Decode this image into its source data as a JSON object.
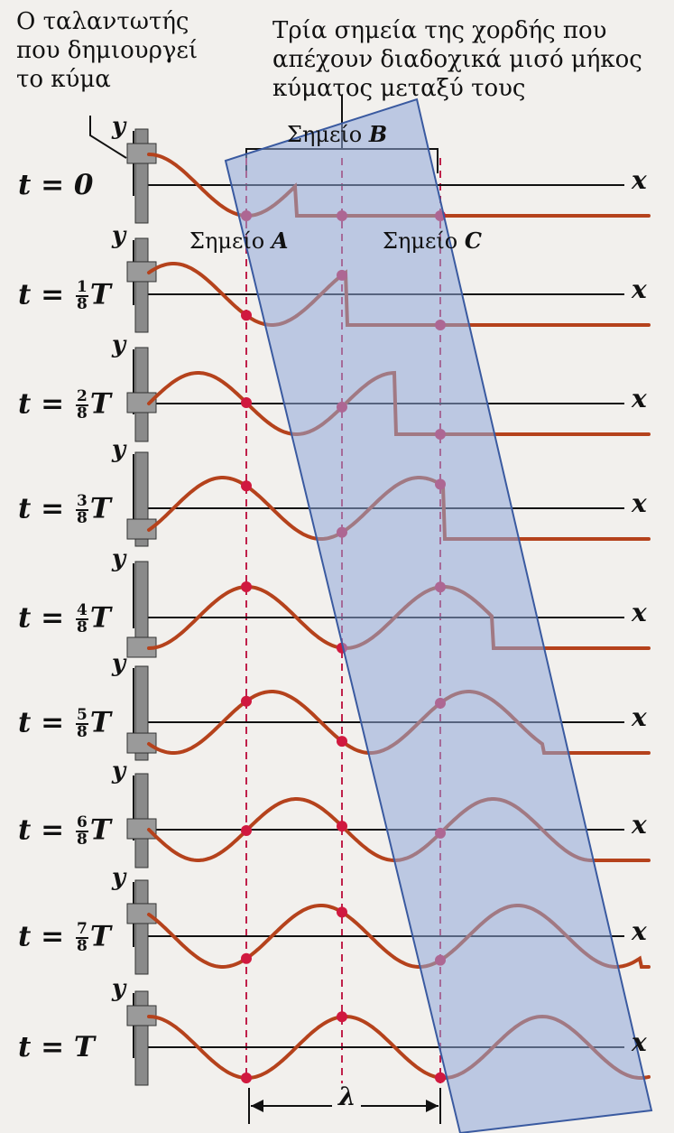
{
  "captions": {
    "oscillator": "Ο ταλαντωτής\nπου δημιουργεί\nτο κύμα",
    "three_points": "Τρία σημεία της χορδής που\nαπέχουν διαδοχικά μισό μήκος\nκύματος μεταξύ τους"
  },
  "points": {
    "A_prefix": "Σημείο",
    "A_letter": "A",
    "B_prefix": "Σημείο",
    "B_letter": "B",
    "C_prefix": "Σημείο",
    "C_letter": "C"
  },
  "axis": {
    "x": "x",
    "y": "y"
  },
  "time_rows": [
    {
      "label_pre": "t = ",
      "num": "",
      "den": "",
      "label_post": "0"
    },
    {
      "label_pre": "t = ",
      "num": "1",
      "den": "8",
      "label_post": "T"
    },
    {
      "label_pre": "t = ",
      "num": "2",
      "den": "8",
      "label_post": "T"
    },
    {
      "label_pre": "t = ",
      "num": "3",
      "den": "8",
      "label_post": "T"
    },
    {
      "label_pre": "t = ",
      "num": "4",
      "den": "8",
      "label_post": "T"
    },
    {
      "label_pre": "t = ",
      "num": "5",
      "den": "8",
      "label_post": "T"
    },
    {
      "label_pre": "t = ",
      "num": "6",
      "den": "8",
      "label_post": "T"
    },
    {
      "label_pre": "t = ",
      "num": "7",
      "den": "8",
      "label_post": "T"
    },
    {
      "label_pre": "t = ",
      "num": "",
      "den": "",
      "label_post": "T"
    }
  ],
  "wavelength_label": "λ",
  "colors": {
    "wave": "#b5421c",
    "marker": "#d0193f",
    "dashed": "#c0204a",
    "highlight": "#8fa8d8",
    "oscillator": "#8a8a8a"
  }
}
